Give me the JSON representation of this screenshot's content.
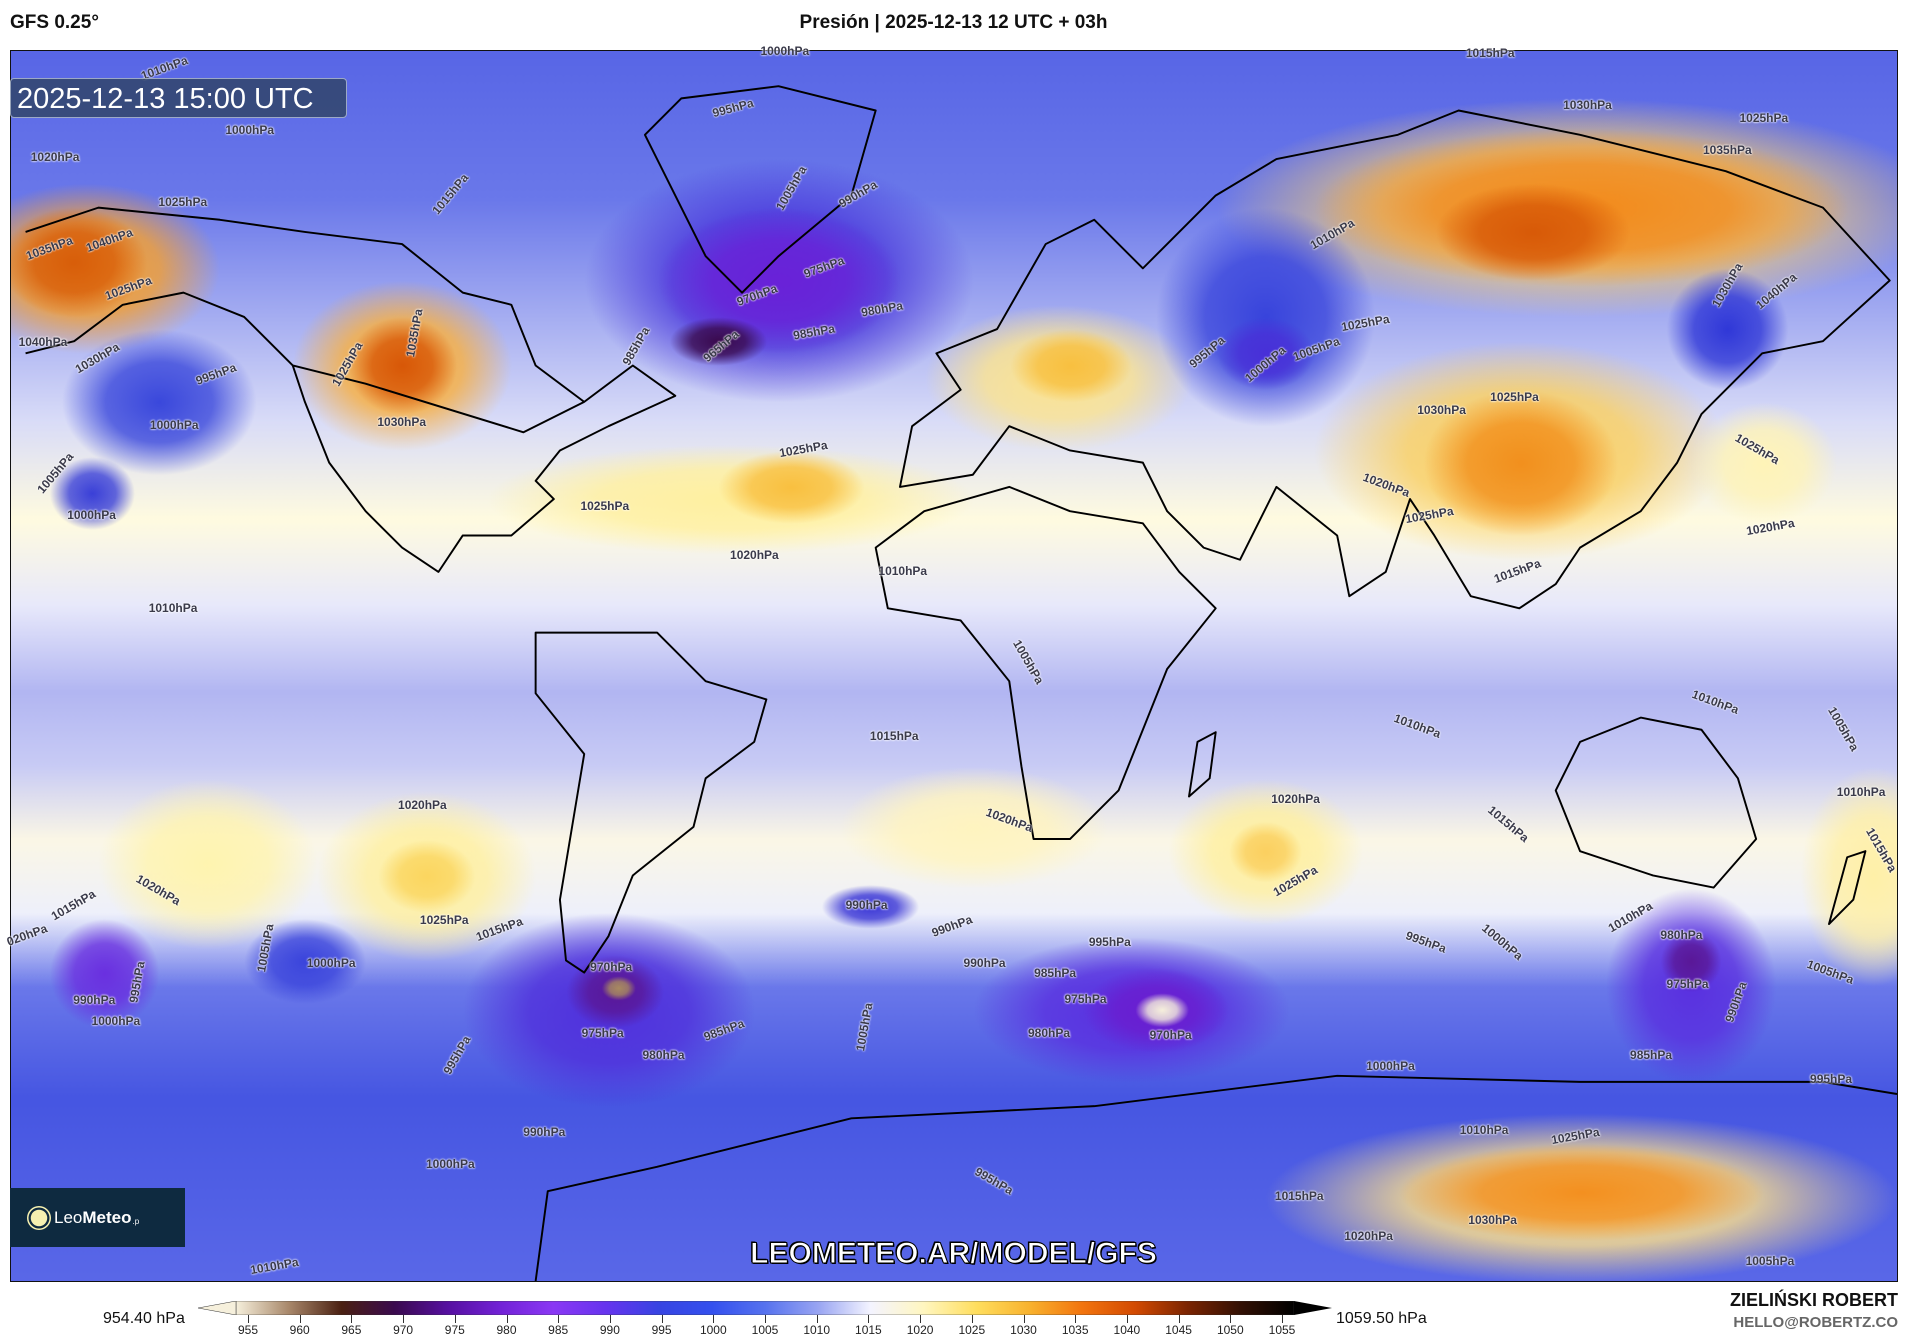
{
  "header": {
    "model": "GFS 0.25°",
    "title": "Presión | 2025-12-13 12 UTC + 03h"
  },
  "map": {
    "valid_time": "2025-12-13 15:00 UTC",
    "watermark": "LEOMETEO.AR/MODEL/GFS",
    "logo": {
      "name_light": "Leo",
      "name_bold": "Meteo",
      "suffix": ".p"
    },
    "isobar_labels": [
      "1000hPa",
      "1015hPa",
      "1010hPa",
      "1000hPa",
      "995hPa",
      "1030hPa",
      "1025hPa",
      "1020hPa",
      "1035hPa",
      "1005hPa",
      "990hPa",
      "1015hPa",
      "1025hPa",
      "1040hPa",
      "1035hPa",
      "1010hPa",
      "975hPa",
      "1025hPa",
      "970hPa",
      "1030hPa",
      "1040hPa",
      "985hPa",
      "980hPa",
      "1035hPa",
      "1040hPa",
      "1030hPa",
      "995hPa",
      "995hPa",
      "1005hPa",
      "1025hPa",
      "1000hPa",
      "985hPa",
      "965hPa",
      "1025hPa",
      "1030hPa",
      "1000hPa",
      "1030hPa",
      "1025hPa",
      "1025hPa",
      "1025hPa",
      "1005hPa",
      "1000hPa",
      "1025hPa",
      "1020hPa",
      "1025hPa",
      "1020hPa",
      "1020hPa",
      "1015hPa",
      "1010hPa",
      "1010hPa",
      "1005hPa",
      "1010hPa",
      "1010hPa",
      "1005hPa",
      "1015hPa",
      "1010hPa",
      "1020hPa",
      "1020hPa",
      "1020hPa",
      "1015hPa",
      "1015hPa",
      "1020hPa",
      "1025hPa",
      "1015hPa",
      "020hPa",
      "1025hPa",
      "1015hPa",
      "990hPa",
      "990hPa",
      "1005hPa",
      "1010hPa",
      "1000hPa",
      "995hPa",
      "995hPa",
      "980hPa",
      "1000hPa",
      "1005hPa",
      "990hPa",
      "985hPa",
      "970hPa",
      "995hPa",
      "975hPa",
      "975hPa",
      "990hPa",
      "990hPa",
      "1000hPa",
      "1005hPa",
      "980hPa",
      "975hPa",
      "980hPa",
      "985hPa",
      "970hPa",
      "995hPa",
      "985hPa",
      "1000hPa",
      "995hPa",
      "990hPa",
      "1010hPa",
      "1025hPa",
      "1000hPa",
      "995hPa",
      "1015hPa",
      "1030hPa",
      "1020hPa",
      "1010hPa",
      "1005hPa"
    ]
  },
  "colorbar": {
    "min_label": "954.40 hPa",
    "max_label": "1059.50 hPa",
    "ticks": [
      "955",
      "960",
      "965",
      "970",
      "975",
      "980",
      "985",
      "990",
      "995",
      "1000",
      "1005",
      "1010",
      "1015",
      "1020",
      "1025",
      "1030",
      "1035",
      "1040",
      "1045",
      "1050",
      "1055"
    ],
    "colors": [
      "#f6f0dc",
      "#a8876a",
      "#4a2012",
      "#3a0a4e",
      "#5610a0",
      "#7222d6",
      "#8a38f4",
      "#6634ee",
      "#3744e2",
      "#3450ee",
      "#5672ee",
      "#98a4f2",
      "#f4f4ff",
      "#fff6c0",
      "#ffde5e",
      "#f8b22e",
      "#f2740e",
      "#d24a02",
      "#7a2402",
      "#321004",
      "#000000"
    ]
  },
  "credits": {
    "author": "ZIELIŃSKI ROBERT",
    "email": "HELLO@ROBERTZ.CO"
  }
}
